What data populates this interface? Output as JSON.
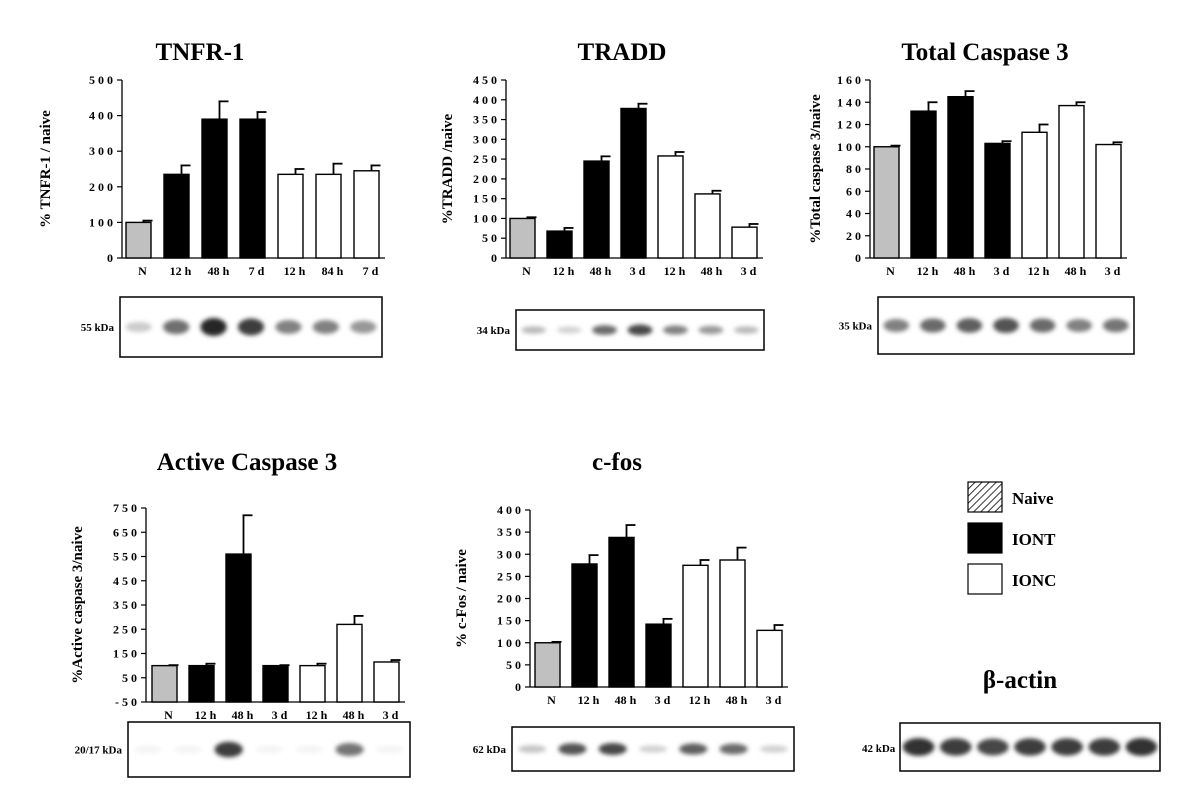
{
  "chart_data": [
    {
      "type": "bar",
      "title": "TNFR-1",
      "ylabel": "% TNFR-1 / naive",
      "ylim": [
        0,
        500
      ],
      "yticks": [
        0,
        100,
        200,
        300,
        400,
        500
      ],
      "ytick_labels": [
        "0",
        "1 0 0",
        "2 0 0",
        "3 0 0",
        "4 0 0",
        "5 0 0"
      ],
      "categories": [
        "N",
        "12 h",
        "48 h",
        "7 d",
        "12 h",
        "84 h",
        "7 d"
      ],
      "groups": [
        "Naive",
        "IONT",
        "IONT",
        "IONT",
        "IONC",
        "IONC",
        "IONC"
      ],
      "values": [
        100,
        235,
        390,
        390,
        235,
        235,
        245
      ],
      "errors": [
        5,
        25,
        50,
        20,
        15,
        30,
        15
      ],
      "blot_label": "55 kDa",
      "blot_bands": [
        0.22,
        0.62,
        0.95,
        0.85,
        0.55,
        0.55,
        0.45
      ]
    },
    {
      "type": "bar",
      "title": "TRADD",
      "ylabel": "%TRADD /naive",
      "ylim": [
        0,
        450
      ],
      "yticks": [
        0,
        50,
        100,
        150,
        200,
        250,
        300,
        350,
        400,
        450
      ],
      "ytick_labels": [
        "0",
        "5 0",
        "1 0 0",
        "1 5 0",
        "2 0 0",
        "2 5 0",
        "3 0 0",
        "3 5 0",
        "4 0 0",
        "4 5 0"
      ],
      "categories": [
        "N",
        "12 h",
        "48 h",
        "3 d",
        "12 h",
        "48 h",
        "3 d"
      ],
      "groups": [
        "Naive",
        "IONT",
        "IONT",
        "IONT",
        "IONC",
        "IONC",
        "IONC"
      ],
      "values": [
        100,
        68,
        245,
        378,
        258,
        162,
        78
      ],
      "errors": [
        3,
        8,
        12,
        12,
        10,
        8,
        8
      ],
      "blot_label": "34 kDa",
      "blot_bands": [
        0.3,
        0.2,
        0.65,
        0.8,
        0.55,
        0.45,
        0.3
      ]
    },
    {
      "type": "bar",
      "title": "Total Caspase 3",
      "ylabel": "%Total caspase 3/naive",
      "ylim": [
        0,
        160
      ],
      "yticks": [
        0,
        20,
        40,
        60,
        80,
        100,
        120,
        140,
        160
      ],
      "ytick_labels": [
        "0",
        "2 0",
        "4 0",
        "6 0",
        "8 0",
        "1 0 0",
        "1 2 0",
        "1 4 0",
        "1 6 0"
      ],
      "categories": [
        "N",
        "12 h",
        "48 h",
        "3 d",
        "12 h",
        "48 h",
        "3 d"
      ],
      "groups": [
        "Naive",
        "IONT",
        "IONT",
        "IONT",
        "IONC",
        "IONC",
        "IONC"
      ],
      "values": [
        100,
        132,
        145,
        103,
        113,
        137,
        102
      ],
      "errors": [
        1,
        8,
        5,
        2,
        7,
        3,
        2
      ],
      "blot_label": "35 kDa",
      "blot_bands": [
        0.55,
        0.65,
        0.7,
        0.75,
        0.65,
        0.55,
        0.6
      ]
    },
    {
      "type": "bar",
      "title": "Active Caspase 3",
      "ylabel": "%Active caspase 3/naive",
      "ylim": [
        -50,
        750
      ],
      "yticks": [
        -50,
        50,
        150,
        250,
        350,
        450,
        550,
        650,
        750
      ],
      "ytick_labels": [
        "- 5 0",
        "5 0",
        "1 5 0",
        "2 5 0",
        "3 5 0",
        "4 5 0",
        "5 5 0",
        "6 5 0",
        "7 5 0"
      ],
      "categories": [
        "N",
        "12 h",
        "48 h",
        "3 d",
        "12 h",
        "48 h",
        "3 d"
      ],
      "groups": [
        "Naive",
        "IONT",
        "IONT",
        "IONT",
        "IONC",
        "IONC",
        "IONC"
      ],
      "values": [
        100,
        100,
        560,
        100,
        100,
        270,
        115
      ],
      "errors": [
        2,
        8,
        160,
        2,
        8,
        35,
        8
      ],
      "blot_label": "20/17 kDa",
      "blot_bands": [
        0.05,
        0.05,
        0.85,
        0.05,
        0.05,
        0.6,
        0.05
      ]
    },
    {
      "type": "bar",
      "title": "c-fos",
      "ylabel": "% c-Fos / naive",
      "ylim": [
        0,
        400
      ],
      "yticks": [
        0,
        50,
        100,
        150,
        200,
        250,
        300,
        350,
        400
      ],
      "ytick_labels": [
        "0",
        "5 0",
        "1 0 0",
        "1 5 0",
        "2 0 0",
        "2 5 0",
        "3 0 0",
        "3 5 0",
        "4 0 0"
      ],
      "categories": [
        "N",
        "12 h",
        "48 h",
        "3 d",
        "12 h",
        "48 h",
        "3 d"
      ],
      "groups": [
        "Naive",
        "IONT",
        "IONT",
        "IONT",
        "IONC",
        "IONC",
        "IONC"
      ],
      "values": [
        100,
        278,
        338,
        142,
        275,
        287,
        128
      ],
      "errors": [
        2,
        20,
        28,
        12,
        12,
        28,
        12
      ],
      "blot_label": "62 kDa",
      "blot_bands": [
        0.25,
        0.75,
        0.8,
        0.2,
        0.7,
        0.65,
        0.2
      ]
    }
  ],
  "legend": [
    {
      "label": "Naive",
      "fill": "hatch"
    },
    {
      "label": "IONT",
      "fill": "#000000"
    },
    {
      "label": "IONC",
      "fill": "#ffffff"
    }
  ],
  "colors": {
    "naive": "#c0c0c0",
    "iont": "#000000",
    "ionc": "#ffffff"
  },
  "actin": {
    "title": "β-actin",
    "blot_label": "42 kDa",
    "blot_bands": [
      0.9,
      0.85,
      0.8,
      0.85,
      0.85,
      0.85,
      0.9
    ]
  }
}
